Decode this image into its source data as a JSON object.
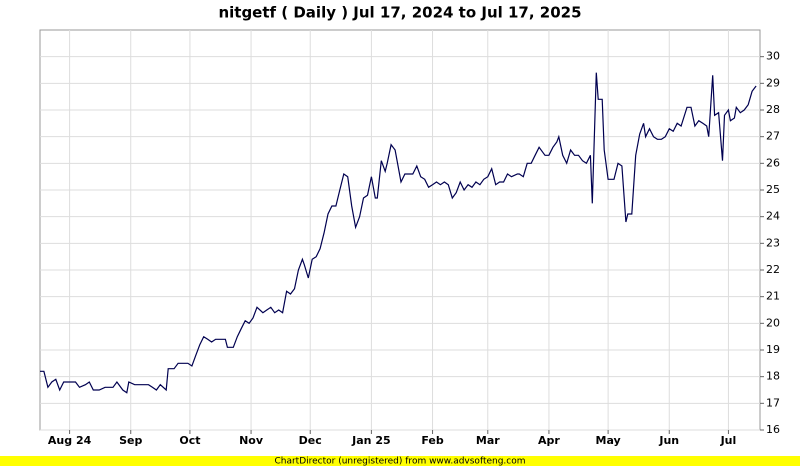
{
  "chart_data": {
    "type": "line",
    "title": "nitgetf ( Daily ) Jul 17, 2024 to Jul 17, 2025",
    "footer": "ChartDirector (unregistered) from www.advsofteng.com",
    "color": "#000050",
    "grid": true,
    "xlim": [
      0,
      365
    ],
    "ylim": [
      16,
      31
    ],
    "xticks": [
      {
        "value": 15,
        "label": "Aug 24"
      },
      {
        "value": 46,
        "label": "Sep"
      },
      {
        "value": 76,
        "label": "Oct"
      },
      {
        "value": 107,
        "label": "Nov"
      },
      {
        "value": 137,
        "label": "Dec"
      },
      {
        "value": 168,
        "label": "Jan 25"
      },
      {
        "value": 199,
        "label": "Feb"
      },
      {
        "value": 227,
        "label": "Mar"
      },
      {
        "value": 258,
        "label": "Apr"
      },
      {
        "value": 288,
        "label": "May"
      },
      {
        "value": 319,
        "label": "Jun"
      },
      {
        "value": 349,
        "label": "Jul"
      }
    ],
    "yticks": [
      16,
      17,
      18,
      19,
      20,
      21,
      22,
      23,
      24,
      25,
      26,
      27,
      28,
      29,
      30
    ],
    "x": [
      0,
      2,
      4,
      6,
      8,
      10,
      12,
      15,
      18,
      20,
      23,
      25,
      27,
      30,
      33,
      37,
      39,
      42,
      44,
      45,
      48,
      52,
      55,
      57,
      59,
      61,
      64,
      65,
      68,
      70,
      73,
      75,
      77,
      79,
      81,
      83,
      85,
      87,
      89,
      91,
      94,
      95,
      98,
      100,
      102,
      104,
      106,
      108,
      110,
      113,
      115,
      117,
      119,
      121,
      123,
      125,
      127,
      129,
      131,
      133,
      134,
      136,
      138,
      140,
      142,
      144,
      146,
      148,
      150,
      152,
      154,
      156,
      158,
      160,
      162,
      164,
      166,
      168,
      170,
      171,
      173,
      175,
      176,
      178,
      180,
      183,
      185,
      187,
      189,
      191,
      193,
      195,
      197,
      199,
      201,
      203,
      205,
      207,
      209,
      211,
      213,
      215,
      217,
      219,
      221,
      223,
      225,
      227,
      229,
      231,
      233,
      235,
      237,
      239,
      242,
      243,
      245,
      247,
      249,
      251,
      253,
      256,
      258,
      260,
      262,
      263,
      265,
      267,
      269,
      271,
      273,
      275,
      277,
      279,
      280,
      282,
      283,
      285,
      286,
      288,
      291,
      293,
      295,
      297,
      298,
      300,
      302,
      304,
      306,
      307,
      309,
      311,
      313,
      315,
      317,
      319,
      321,
      323,
      325,
      328,
      330,
      332,
      334,
      336,
      338,
      339,
      341,
      342,
      344,
      346,
      347,
      349,
      350,
      352,
      353,
      355,
      357,
      359,
      361,
      363
    ],
    "values": [
      18.2,
      18.2,
      17.6,
      17.8,
      17.9,
      17.5,
      17.8,
      17.8,
      17.8,
      17.6,
      17.7,
      17.8,
      17.5,
      17.5,
      17.6,
      17.6,
      17.8,
      17.5,
      17.4,
      17.8,
      17.7,
      17.7,
      17.7,
      17.6,
      17.5,
      17.7,
      17.5,
      18.3,
      18.3,
      18.5,
      18.5,
      18.5,
      18.4,
      18.8,
      19.2,
      19.5,
      19.4,
      19.3,
      19.4,
      19.4,
      19.4,
      19.1,
      19.1,
      19.5,
      19.8,
      20.1,
      20.0,
      20.2,
      20.6,
      20.4,
      20.5,
      20.6,
      20.4,
      20.5,
      20.4,
      21.2,
      21.1,
      21.3,
      22.0,
      22.4,
      22.2,
      21.7,
      22.4,
      22.5,
      22.8,
      23.4,
      24.1,
      24.4,
      24.4,
      25.0,
      25.6,
      25.5,
      24.4,
      23.6,
      24.0,
      24.7,
      24.8,
      25.5,
      24.7,
      24.7,
      26.1,
      25.7,
      26.0,
      26.7,
      26.5,
      25.3,
      25.6,
      25.6,
      25.6,
      25.9,
      25.5,
      25.4,
      25.1,
      25.2,
      25.3,
      25.2,
      25.3,
      25.2,
      24.7,
      24.9,
      25.3,
      25.0,
      25.2,
      25.1,
      25.3,
      25.2,
      25.4,
      25.5,
      25.8,
      25.2,
      25.3,
      25.3,
      25.6,
      25.5,
      25.6,
      25.6,
      25.5,
      26.0,
      26.0,
      26.3,
      26.6,
      26.3,
      26.3,
      26.6,
      26.8,
      27.0,
      26.3,
      26.0,
      26.5,
      26.3,
      26.3,
      26.1,
      26.0,
      26.3,
      24.5,
      29.4,
      28.4,
      28.4,
      26.5,
      25.4,
      25.4,
      26.0,
      25.9,
      23.8,
      24.1,
      24.1,
      26.3,
      27.1,
      27.5,
      27.0,
      27.3,
      27.0,
      26.9,
      26.9,
      27.0,
      27.3,
      27.2,
      27.5,
      27.4,
      28.1,
      28.1,
      27.4,
      27.6,
      27.5,
      27.4,
      27.0,
      29.3,
      27.8,
      27.9,
      26.1,
      27.8,
      28.0,
      27.6,
      27.7,
      28.1,
      27.9,
      28.0,
      28.2,
      28.7,
      28.9
    ]
  }
}
